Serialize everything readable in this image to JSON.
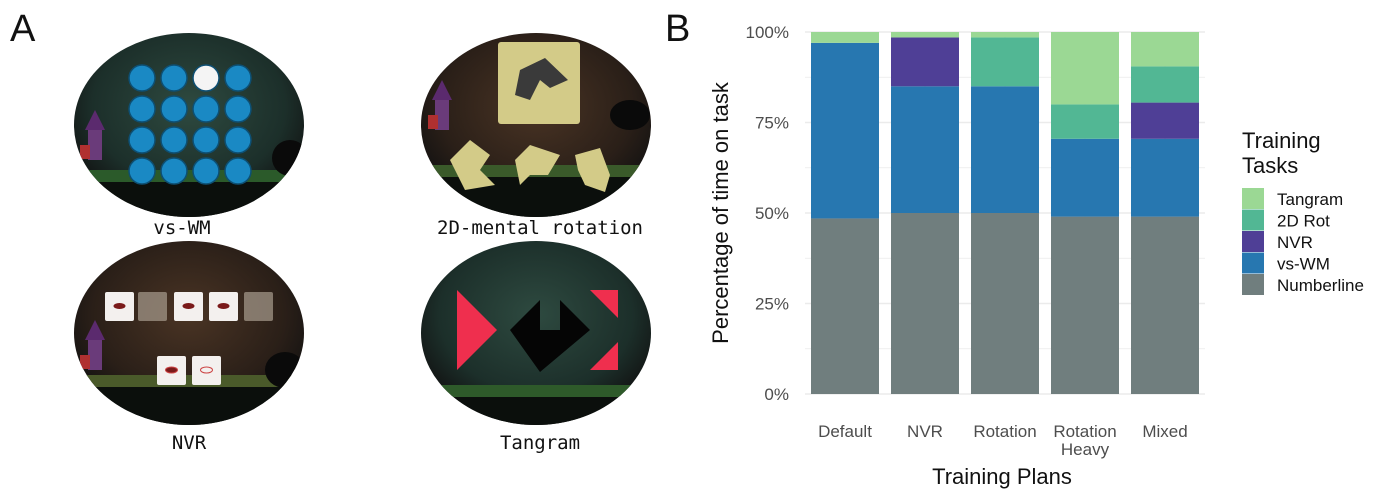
{
  "panels": {
    "a_label": "A",
    "b_label": "B"
  },
  "games": [
    {
      "name": "vs-wm",
      "caption": "vs-WM"
    },
    {
      "name": "2d-rotation",
      "caption": "2D-mental rotation"
    },
    {
      "name": "nvr",
      "caption": "NVR"
    },
    {
      "name": "tangram",
      "caption": "Tangram"
    }
  ],
  "colors": {
    "Numberline": "#707e7e",
    "vs-WM": "#2777b0",
    "NVR": "#4f3f96",
    "2D Rot": "#52b794",
    "Tangram": "#9bd894",
    "game_bg": "#1f3a33",
    "tile_blue": "#1a89c4",
    "tangram_red": "#ef2f4e",
    "card_sand": "#d3cb88"
  },
  "chart_data": {
    "type": "bar",
    "stacked": true,
    "categories": [
      "Default",
      "NVR",
      "Rotation",
      "Rotation\nHeavy",
      "Mixed"
    ],
    "series": [
      {
        "name": "Numberline",
        "values": [
          48.5,
          50,
          50,
          49,
          49
        ]
      },
      {
        "name": "vs-WM",
        "values": [
          48.5,
          35,
          35,
          21.5,
          21.5
        ]
      },
      {
        "name": "NVR",
        "values": [
          0,
          13.5,
          0,
          0,
          10
        ]
      },
      {
        "name": "2D Rot",
        "values": [
          0,
          0,
          13.5,
          9.5,
          10
        ]
      },
      {
        "name": "Tangram",
        "values": [
          3,
          1.5,
          1.5,
          20,
          9.5
        ]
      }
    ],
    "ylim": [
      0,
      100
    ],
    "yticks": [
      "0%",
      "25%",
      "50%",
      "75%",
      "100%"
    ],
    "ylabel": "Percentage of time on task",
    "xlabel": "Training Plans",
    "legend": {
      "title": "Training\nTasks",
      "order": [
        "Tangram",
        "2D Rot",
        "NVR",
        "vs-WM",
        "Numberline"
      ],
      "position": "right"
    },
    "grid": true
  }
}
